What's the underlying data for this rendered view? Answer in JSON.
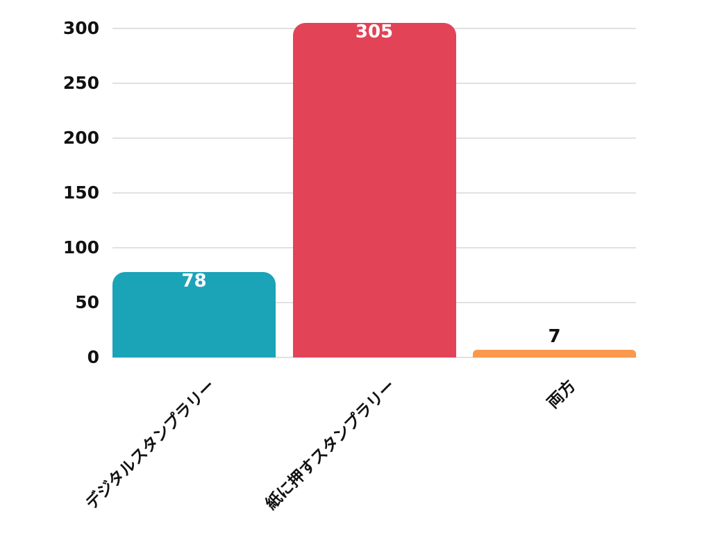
{
  "chart_data": {
    "type": "bar",
    "title": "",
    "xlabel": "",
    "ylabel": "",
    "categories": [
      "デジタルスタンプラリー",
      "紙に押すスタンプラリー",
      "両方"
    ],
    "values": [
      78,
      305,
      7
    ],
    "bar_colors": [
      "#1BA3B8",
      "#E24356",
      "#FA984E"
    ],
    "ylim": [
      0,
      300
    ],
    "yticks": [
      0,
      50,
      100,
      150,
      200,
      250,
      300
    ],
    "grid": true,
    "legend": false,
    "background_color": "#ffffff",
    "grid_color": "#e1e1e1",
    "axis_text_color": "#111111",
    "value_label_inside_color": "#ffffff",
    "value_label_outside_color": "#111111"
  }
}
